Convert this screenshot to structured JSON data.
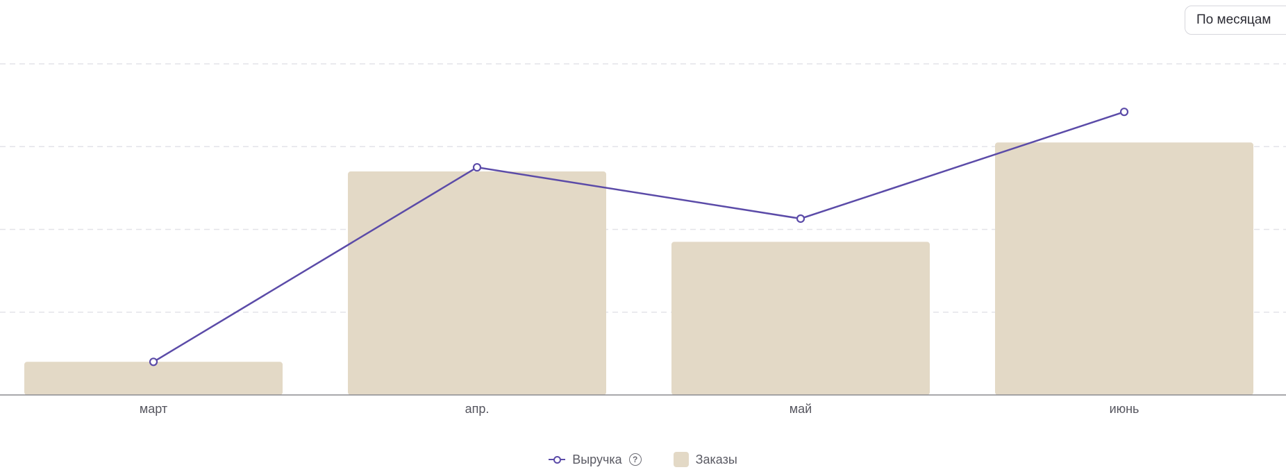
{
  "period_selector": {
    "label": "По месяцам"
  },
  "chart_data": {
    "type": "bar",
    "categories": [
      "март",
      "апр.",
      "май",
      "июнь"
    ],
    "series": [
      {
        "name": "Заказы",
        "kind": "bar",
        "color": "#e3d9c6",
        "values": [
          0.4,
          2.7,
          1.85,
          3.05
        ]
      },
      {
        "name": "Выручка",
        "kind": "line",
        "color": "#5b4ba8",
        "values": [
          0.4,
          2.75,
          2.13,
          3.42
        ]
      }
    ],
    "ylim": [
      0,
      4
    ],
    "grid": true,
    "legend": {
      "position": "bottom-center",
      "help_icon": "question-circle-icon"
    }
  }
}
